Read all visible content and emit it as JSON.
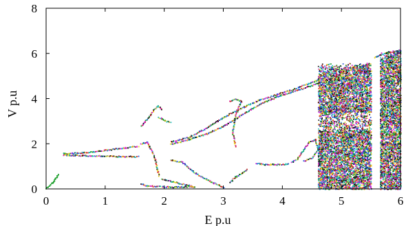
{
  "chart_data": {
    "type": "scatter",
    "title": "",
    "xlabel": "E p.u",
    "ylabel": "V p.u",
    "xlim": [
      0,
      6
    ],
    "ylim": [
      0,
      8
    ],
    "x_ticks": [
      "0",
      "1",
      "2",
      "3",
      "4",
      "5",
      "6"
    ],
    "y_ticks": [
      "0",
      "2",
      "4",
      "6",
      "8"
    ],
    "grid": false,
    "legend": "none",
    "point_colors": [
      "#d62728",
      "#1f4fd6",
      "#1a9e2a",
      "#111111",
      "#e8d21e",
      "#d61fd6",
      "#1fb8c9"
    ],
    "branches": [
      {
        "name": "left-green-tail",
        "points": [
          [
            0.0,
            0.05
          ],
          [
            0.1,
            0.3
          ],
          [
            0.2,
            0.65
          ]
        ]
      },
      {
        "name": "main-upper-period1",
        "points": [
          [
            0.28,
            1.58
          ],
          [
            0.6,
            1.62
          ],
          [
            0.9,
            1.7
          ],
          [
            1.2,
            1.8
          ],
          [
            1.45,
            1.88
          ],
          [
            1.55,
            1.9
          ]
        ]
      },
      {
        "name": "main-lower-period1",
        "points": [
          [
            0.28,
            1.52
          ],
          [
            0.6,
            1.5
          ],
          [
            0.9,
            1.48
          ],
          [
            1.2,
            1.46
          ],
          [
            1.45,
            1.45
          ],
          [
            1.55,
            1.45
          ]
        ]
      },
      {
        "name": "cluster-near-2-high",
        "points": [
          [
            1.6,
            2.8
          ],
          [
            1.7,
            3.1
          ],
          [
            1.8,
            3.45
          ],
          [
            1.88,
            3.7
          ],
          [
            1.95,
            3.55
          ]
        ]
      },
      {
        "name": "cluster-near-2-mid",
        "points": [
          [
            1.9,
            3.2
          ],
          [
            2.0,
            3.05
          ],
          [
            2.1,
            2.95
          ]
        ]
      },
      {
        "name": "cluster-near-2-low",
        "points": [
          [
            1.6,
            2.0
          ],
          [
            1.7,
            2.1
          ],
          [
            1.8,
            1.6
          ],
          [
            1.85,
            1.2
          ],
          [
            1.9,
            0.6
          ]
        ]
      },
      {
        "name": "rising-upper",
        "points": [
          [
            2.1,
            2.1
          ],
          [
            2.4,
            2.3
          ],
          [
            2.7,
            2.7
          ],
          [
            3.0,
            3.2
          ],
          [
            3.3,
            3.6
          ],
          [
            3.6,
            3.95
          ],
          [
            3.9,
            4.2
          ],
          [
            4.2,
            4.45
          ],
          [
            4.5,
            4.75
          ],
          [
            4.65,
            4.9
          ]
        ]
      },
      {
        "name": "rising-lower",
        "points": [
          [
            2.1,
            2.0
          ],
          [
            2.4,
            2.2
          ],
          [
            2.7,
            2.45
          ],
          [
            3.0,
            2.8
          ],
          [
            3.3,
            3.3
          ],
          [
            3.6,
            3.75
          ],
          [
            3.9,
            4.1
          ],
          [
            4.2,
            4.35
          ],
          [
            4.5,
            4.6
          ],
          [
            4.65,
            4.75
          ]
        ]
      },
      {
        "name": "falling-lower",
        "points": [
          [
            2.1,
            1.3
          ],
          [
            2.3,
            1.2
          ],
          [
            2.5,
            0.75
          ],
          [
            2.7,
            0.45
          ],
          [
            2.9,
            0.2
          ],
          [
            3.0,
            0.08
          ]
        ]
      },
      {
        "name": "cluster-near-3.2-upper",
        "points": [
          [
            3.1,
            3.9
          ],
          [
            3.2,
            4.0
          ],
          [
            3.3,
            3.9
          ],
          [
            3.2,
            3.3
          ],
          [
            3.15,
            2.5
          ],
          [
            3.2,
            1.9
          ]
        ]
      },
      {
        "name": "cluster-near-3.2-lower",
        "points": [
          [
            3.1,
            0.3
          ],
          [
            3.2,
            0.55
          ],
          [
            3.3,
            0.7
          ],
          [
            3.4,
            0.9
          ]
        ]
      },
      {
        "name": "lower-branch-3.5-4.1",
        "points": [
          [
            3.55,
            1.15
          ],
          [
            3.7,
            1.1
          ],
          [
            3.85,
            1.1
          ],
          [
            4.0,
            1.1
          ],
          [
            4.1,
            1.15
          ]
        ]
      },
      {
        "name": "loop-near-4.4",
        "points": [
          [
            4.15,
            1.2
          ],
          [
            4.25,
            1.35
          ],
          [
            4.35,
            1.75
          ],
          [
            4.45,
            2.1
          ],
          [
            4.55,
            2.2
          ],
          [
            4.6,
            1.8
          ],
          [
            4.5,
            1.4
          ],
          [
            4.35,
            1.25
          ]
        ]
      },
      {
        "name": "low-left-dots",
        "points": [
          [
            1.6,
            0.25
          ],
          [
            1.7,
            0.15
          ],
          [
            2.1,
            0.1
          ],
          [
            2.5,
            0.12
          ],
          [
            1.95,
            0.45
          ]
        ]
      },
      {
        "name": "right-upper-branch",
        "points": [
          [
            5.55,
            5.85
          ],
          [
            5.65,
            5.95
          ],
          [
            5.8,
            6.05
          ],
          [
            5.95,
            6.15
          ]
        ]
      }
    ],
    "chaotic_regions": [
      {
        "name": "chaos-4.6-5.5",
        "x_range": [
          4.6,
          5.5
        ],
        "y_range": [
          0.0,
          5.6
        ]
      },
      {
        "name": "chaos-5.65-6.0",
        "x_range": [
          5.65,
          6.0
        ],
        "y_range": [
          0.0,
          6.2
        ]
      }
    ]
  }
}
